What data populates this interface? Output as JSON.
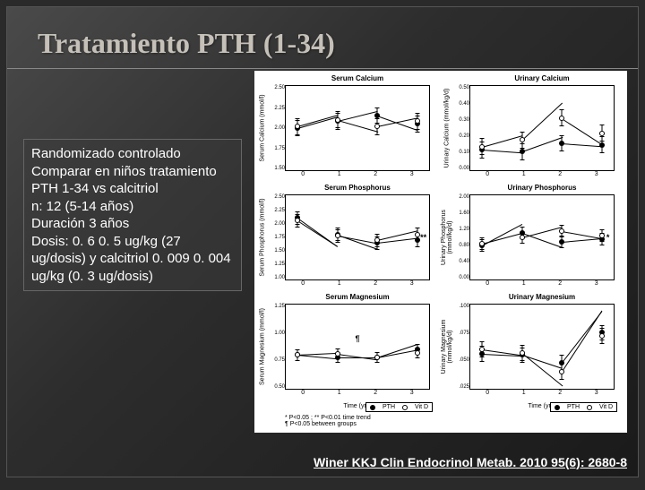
{
  "title": "Tratamiento PTH (1-34)",
  "description": "Randomizado controlado Comparar en niños tratamiento PTH 1-34 vs calcitriol\nn: 12 (5-14 años)\nDuración 3 años\nDosis: 0. 6  0. 5 ug/kg (27 ug/dosis)  y calcitriol  0. 009  0. 004 ug/kg (0. 3 ug/dosis)",
  "citation": "Winer KKJ Clin Endocrinol Metab. 2010 95(6): 2680-8",
  "legend_left": {
    "series_a": "PTH",
    "series_b": "Vit D"
  },
  "legend_right": {
    "series_a": "PTH",
    "series_b": "Vit D"
  },
  "footnotes": {
    "line1": "* P<0.05 ; ** P<0.01 time trend",
    "line2": "¶ P<0.05 between groups"
  },
  "xticks": [
    "0",
    "1",
    "2",
    "3"
  ],
  "xlabel": "Time (yrs)",
  "panels": [
    {
      "title": "Serum Calcium",
      "ylabel": "Serum Calcium (mmol/l)",
      "ylim": [
        1.5,
        2.5
      ],
      "yticks": [
        "2.50",
        "2.25",
        "2.00",
        "1.75",
        "1.50"
      ],
      "series": {
        "closed": [
          [
            0,
            2.0
          ],
          [
            1,
            2.08
          ],
          [
            2,
            2.15
          ],
          [
            3,
            2.05
          ]
        ],
        "open": [
          [
            0,
            2.02
          ],
          [
            1,
            2.1
          ],
          [
            2,
            2.02
          ],
          [
            3,
            2.08
          ]
        ]
      },
      "err": 0.1
    },
    {
      "title": "Urinary Calcium",
      "ylabel": "Urinary Calcium (mmol/kg/d)",
      "ylim": [
        0,
        0.5
      ],
      "yticks": [
        "0.50",
        "0.40",
        "0.30",
        "0.20",
        "0.10",
        "0.00"
      ],
      "series": {
        "closed": [
          [
            0,
            0.12
          ],
          [
            1,
            0.11
          ],
          [
            2,
            0.16
          ],
          [
            3,
            0.15
          ]
        ],
        "open": [
          [
            0,
            0.14
          ],
          [
            1,
            0.18
          ],
          [
            2,
            0.31
          ],
          [
            3,
            0.22
          ]
        ]
      },
      "err": 0.05
    },
    {
      "title": "Serum Phosphorus",
      "ylabel": "Serum Phosphorus (mmol/l)",
      "ylim": [
        1.0,
        2.5
      ],
      "yticks": [
        "2.50",
        "2.25",
        "2.00",
        "1.75",
        "1.50",
        "1.25",
        "1.00"
      ],
      "series": {
        "closed": [
          [
            0,
            2.1
          ],
          [
            1,
            1.8
          ],
          [
            2,
            1.65
          ],
          [
            3,
            1.7
          ]
        ],
        "open": [
          [
            0,
            2.05
          ],
          [
            1,
            1.78
          ],
          [
            2,
            1.7
          ],
          [
            3,
            1.8
          ]
        ]
      },
      "err": 0.12,
      "sig_row4": "**"
    },
    {
      "title": "Urinary Phosphorus",
      "ylabel": "Urinary Phosphorus (mmol/kg/d)",
      "ylim": [
        0,
        2.0
      ],
      "yticks": [
        "2.00",
        "1.60",
        "1.20",
        "0.80",
        "0.40",
        "0.00"
      ],
      "series": {
        "closed": [
          [
            0,
            0.8
          ],
          [
            1,
            1.1
          ],
          [
            2,
            0.9
          ],
          [
            3,
            0.95
          ]
        ],
        "open": [
          [
            0,
            0.85
          ],
          [
            1,
            1.0
          ],
          [
            2,
            1.15
          ],
          [
            3,
            1.05
          ]
        ]
      },
      "err": 0.15,
      "sig_row4": "*"
    },
    {
      "title": "Serum Magnesium",
      "ylabel": "Serum Magnesium (mmol/l)",
      "ylim": [
        0.5,
        1.25
      ],
      "yticks": [
        "1.25",
        "1.00",
        "0.75",
        "0.50"
      ],
      "series": {
        "closed": [
          [
            0,
            0.8
          ],
          [
            1,
            0.78
          ],
          [
            2,
            0.78
          ],
          [
            3,
            0.85
          ]
        ],
        "open": [
          [
            0,
            0.8
          ],
          [
            1,
            0.81
          ],
          [
            2,
            0.78
          ],
          [
            3,
            0.82
          ]
        ]
      },
      "err": 0.05,
      "sig_center": "¶"
    },
    {
      "title": "Urinary Magnesium",
      "ylabel": "Urinary Magnesium (mmol/kg/d)",
      "ylim": [
        0.025,
        0.1
      ],
      "yticks": [
        ".100",
        ".075",
        ".050",
        ".025"
      ],
      "series": {
        "closed": [
          [
            0,
            0.056
          ],
          [
            1,
            0.055
          ],
          [
            2,
            0.048
          ],
          [
            3,
            0.075
          ]
        ],
        "open": [
          [
            0,
            0.06
          ],
          [
            1,
            0.057
          ],
          [
            2,
            0.04
          ],
          [
            3,
            0.072
          ]
        ]
      },
      "err": 0.007
    }
  ]
}
